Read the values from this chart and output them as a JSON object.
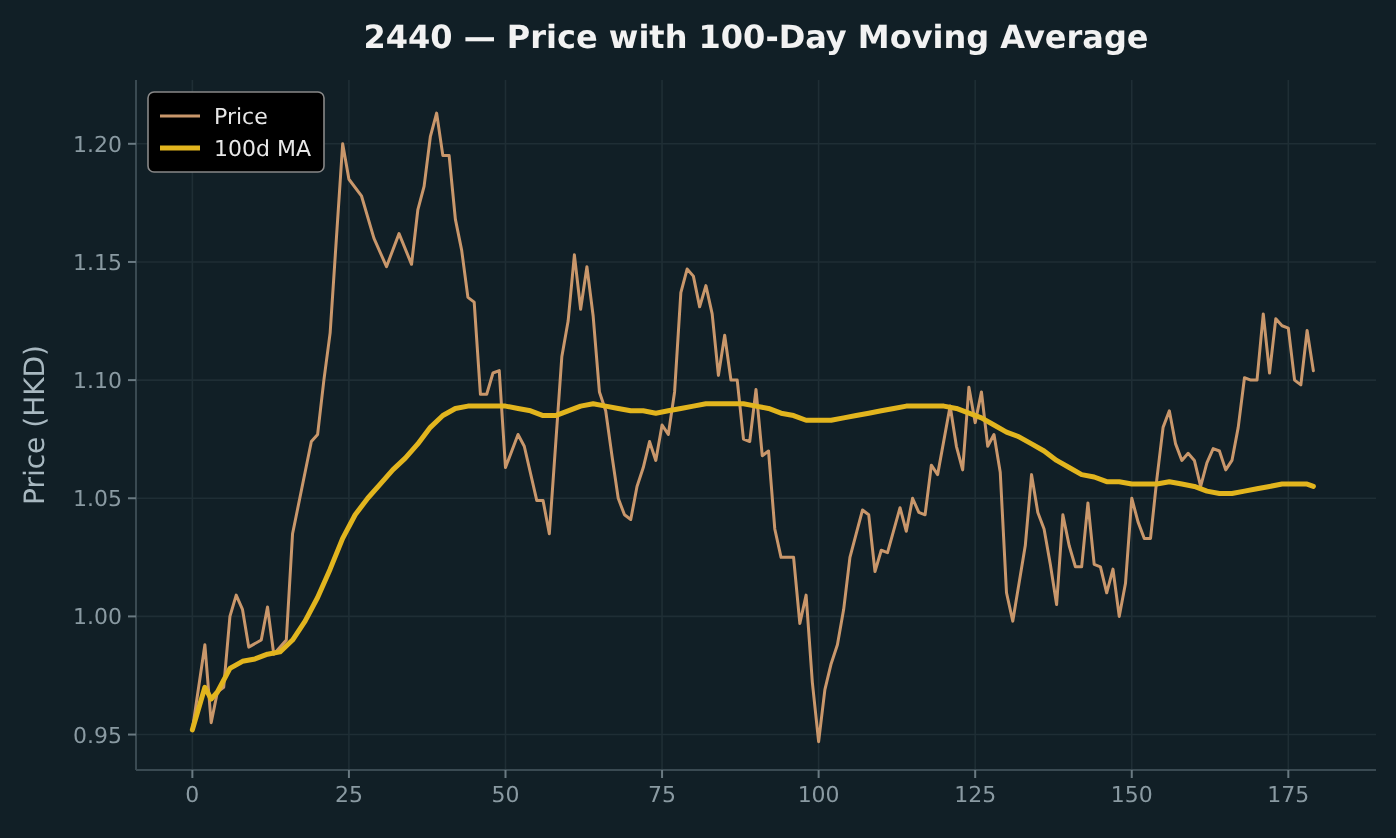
{
  "chart_data": {
    "type": "line",
    "title": "2440 — Price with 100-Day Moving Average",
    "ylabel": "Price (HKD)",
    "xlim": [
      -9,
      189
    ],
    "xticks": [
      0,
      25,
      50,
      75,
      100,
      125,
      150,
      175
    ],
    "ylim": [
      0.935,
      1.227
    ],
    "yticks": [
      {
        "value": 0.95,
        "label": "0.95"
      },
      {
        "value": 1.0,
        "label": "1.00"
      },
      {
        "value": 1.05,
        "label": "1.05"
      },
      {
        "value": 1.1,
        "label": "1.10"
      },
      {
        "value": 1.15,
        "label": "1.15"
      },
      {
        "value": 1.2,
        "label": "1.20"
      }
    ],
    "grid": true,
    "legend": "top left",
    "line_style": "solid",
    "marker": "none",
    "series": [
      {
        "name": "Price",
        "color": "#c9976b",
        "x": [
          0,
          2,
          3,
          4,
          5,
          6,
          7,
          8,
          9,
          11,
          12,
          13,
          15,
          16,
          19,
          20,
          21,
          22,
          24,
          25,
          27,
          29,
          31,
          33,
          35,
          36,
          37,
          38,
          39,
          40,
          41,
          42,
          43,
          44,
          45,
          46,
          47,
          48,
          49,
          50,
          52,
          53,
          55,
          56,
          57,
          59,
          60,
          61,
          62,
          63,
          64,
          65,
          66,
          67,
          68,
          69,
          70,
          71,
          72,
          73,
          74,
          75,
          76,
          77,
          78,
          79,
          80,
          81,
          82,
          83,
          84,
          85,
          86,
          87,
          88,
          89,
          90,
          91,
          92,
          93,
          94,
          96,
          97,
          98,
          99,
          100,
          101,
          102,
          103,
          104,
          105,
          107,
          108,
          109,
          110,
          111,
          113,
          114,
          115,
          116,
          117,
          118,
          119,
          121,
          122,
          123,
          124,
          125,
          126,
          127,
          128,
          129,
          130,
          131,
          133,
          134,
          135,
          136,
          137,
          138,
          139,
          140,
          141,
          142,
          143,
          144,
          145,
          146,
          147,
          148,
          149,
          150,
          151,
          152,
          153,
          154,
          155,
          156,
          157,
          158,
          159,
          160,
          161,
          162,
          163,
          164,
          165,
          166,
          167,
          168,
          169,
          170,
          171,
          172,
          173,
          174,
          175,
          176,
          177,
          178,
          179
        ],
        "values": [
          0.952,
          0.988,
          0.955,
          0.968,
          0.97,
          1.0,
          1.009,
          1.003,
          0.987,
          0.99,
          1.004,
          0.984,
          0.99,
          1.035,
          1.074,
          1.077,
          1.1,
          1.12,
          1.2,
          1.185,
          1.178,
          1.16,
          1.148,
          1.162,
          1.149,
          1.172,
          1.182,
          1.203,
          1.213,
          1.195,
          1.195,
          1.168,
          1.155,
          1.135,
          1.133,
          1.094,
          1.094,
          1.103,
          1.104,
          1.063,
          1.077,
          1.072,
          1.049,
          1.049,
          1.035,
          1.11,
          1.125,
          1.153,
          1.13,
          1.148,
          1.127,
          1.095,
          1.087,
          1.068,
          1.05,
          1.043,
          1.041,
          1.055,
          1.063,
          1.074,
          1.066,
          1.081,
          1.077,
          1.095,
          1.137,
          1.147,
          1.144,
          1.131,
          1.14,
          1.128,
          1.102,
          1.119,
          1.1,
          1.1,
          1.075,
          1.074,
          1.096,
          1.068,
          1.07,
          1.037,
          1.025,
          1.025,
          0.997,
          1.009,
          0.972,
          0.947,
          0.969,
          0.98,
          0.988,
          1.003,
          1.025,
          1.045,
          1.043,
          1.019,
          1.028,
          1.027,
          1.046,
          1.036,
          1.05,
          1.044,
          1.043,
          1.064,
          1.06,
          1.089,
          1.072,
          1.062,
          1.097,
          1.082,
          1.095,
          1.072,
          1.077,
          1.061,
          1.01,
          0.998,
          1.03,
          1.06,
          1.044,
          1.037,
          1.022,
          1.005,
          1.043,
          1.03,
          1.021,
          1.021,
          1.048,
          1.022,
          1.021,
          1.01,
          1.02,
          1.0,
          1.014,
          1.05,
          1.04,
          1.033,
          1.033,
          1.058,
          1.08,
          1.087,
          1.073,
          1.066,
          1.069,
          1.066,
          1.055,
          1.065,
          1.071,
          1.07,
          1.062,
          1.066,
          1.08,
          1.101,
          1.1,
          1.1,
          1.128,
          1.103,
          1.126,
          1.123,
          1.122,
          1.1,
          1.098,
          1.121,
          1.104
        ]
      },
      {
        "name": "100d MA",
        "color": "#e2b51e",
        "x": [
          0,
          2,
          3,
          4,
          6,
          8,
          10,
          12,
          14,
          16,
          18,
          20,
          22,
          24,
          26,
          28,
          30,
          32,
          34,
          36,
          38,
          40,
          42,
          44,
          46,
          48,
          50,
          52,
          54,
          56,
          58,
          60,
          62,
          64,
          66,
          68,
          70,
          72,
          74,
          76,
          78,
          80,
          82,
          84,
          86,
          88,
          90,
          92,
          94,
          96,
          98,
          100,
          102,
          104,
          106,
          108,
          110,
          112,
          114,
          116,
          118,
          120,
          122,
          124,
          126,
          128,
          130,
          132,
          134,
          136,
          138,
          140,
          142,
          144,
          146,
          148,
          150,
          152,
          154,
          156,
          158,
          160,
          162,
          164,
          166,
          168,
          170,
          172,
          174,
          176,
          178,
          179
        ],
        "values": [
          0.952,
          0.97,
          0.965,
          0.968,
          0.978,
          0.981,
          0.982,
          0.984,
          0.985,
          0.99,
          0.998,
          1.008,
          1.02,
          1.033,
          1.043,
          1.05,
          1.056,
          1.062,
          1.067,
          1.073,
          1.08,
          1.085,
          1.088,
          1.089,
          1.089,
          1.089,
          1.089,
          1.088,
          1.087,
          1.085,
          1.085,
          1.087,
          1.089,
          1.09,
          1.089,
          1.088,
          1.087,
          1.087,
          1.086,
          1.087,
          1.088,
          1.089,
          1.09,
          1.09,
          1.09,
          1.09,
          1.089,
          1.088,
          1.086,
          1.085,
          1.083,
          1.083,
          1.083,
          1.084,
          1.085,
          1.086,
          1.087,
          1.088,
          1.089,
          1.089,
          1.089,
          1.089,
          1.088,
          1.086,
          1.084,
          1.081,
          1.078,
          1.076,
          1.073,
          1.07,
          1.066,
          1.063,
          1.06,
          1.059,
          1.057,
          1.057,
          1.056,
          1.056,
          1.056,
          1.057,
          1.056,
          1.055,
          1.053,
          1.052,
          1.052,
          1.053,
          1.054,
          1.055,
          1.056,
          1.056,
          1.056,
          1.055
        ]
      }
    ]
  }
}
